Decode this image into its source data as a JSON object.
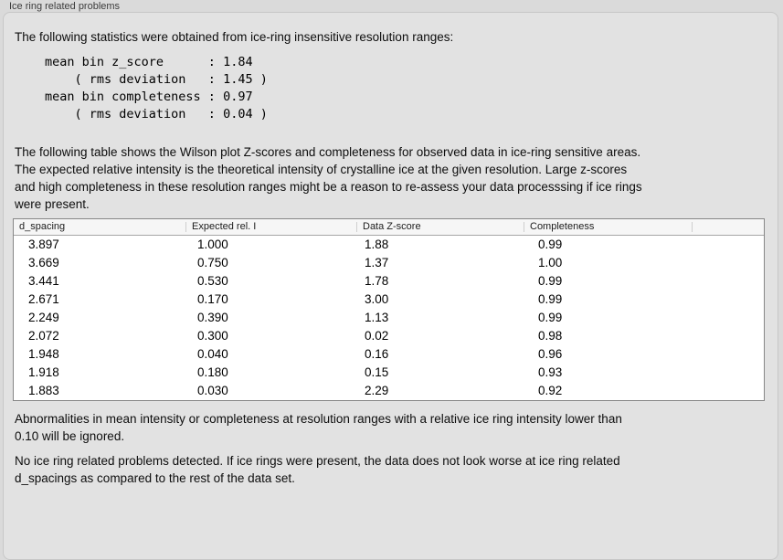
{
  "panel": {
    "title": "Ice ring related problems",
    "intro": "The following statistics were obtained from ice-ring insensitive resolution ranges:",
    "stats_block": "mean bin z_score      : 1.84\n    ( rms deviation   : 1.45 )\nmean bin completeness : 0.97\n    ( rms deviation   : 0.04 )",
    "stats": {
      "mean_bin_z_score": "1.84",
      "z_score_rms_deviation": "1.45",
      "mean_bin_completeness": "0.97",
      "completeness_rms_deviation": "0.04"
    },
    "table_description": "The following table shows the Wilson plot Z-scores and completeness for observed data in ice-ring sensitive areas.\nThe expected relative intensity is the theoretical intensity of crystalline ice at the given resolution. Large z-scores\nand high completeness in these resolution ranges might be a reason to re-assess your data processsing if ice rings\nwere present.",
    "ignore_note": "Abnormalities in mean intensity or completeness at resolution ranges with a relative ice ring intensity lower than\n0.10 will be ignored.",
    "conclusion": "No ice ring related problems detected. If ice rings were present, the data does not look worse at ice ring related\nd_spacings as compared to the rest of the data set."
  },
  "table": {
    "columns": [
      "d_spacing",
      "Expected rel. I",
      "Data Z-score",
      "Completeness"
    ],
    "rows": [
      [
        "3.897",
        "1.000",
        "1.88",
        "0.99"
      ],
      [
        "3.669",
        "0.750",
        "1.37",
        "1.00"
      ],
      [
        "3.441",
        "0.530",
        "1.78",
        "0.99"
      ],
      [
        "2.671",
        "0.170",
        "3.00",
        "0.99"
      ],
      [
        "2.249",
        "0.390",
        "1.13",
        "0.99"
      ],
      [
        "2.072",
        "0.300",
        "0.02",
        "0.98"
      ],
      [
        "1.948",
        "0.040",
        "0.16",
        "0.96"
      ],
      [
        "1.918",
        "0.180",
        "0.15",
        "0.93"
      ],
      [
        "1.883",
        "0.030",
        "2.29",
        "0.92"
      ]
    ]
  },
  "colors": {
    "panel_background": "#e2e2e2",
    "page_background": "#dadada",
    "table_border": "#878787",
    "table_header_background": "#f6f6f6"
  }
}
